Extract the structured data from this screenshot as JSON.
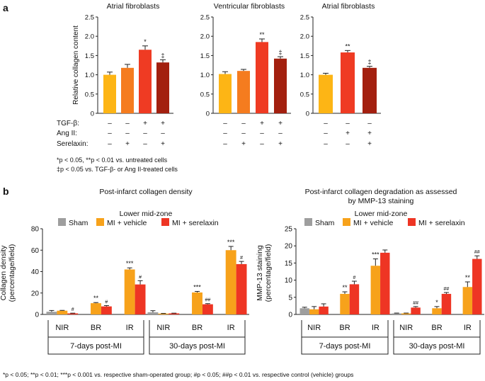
{
  "panel_labels": {
    "a": "a",
    "b": "b"
  },
  "colors": {
    "gray": "#9e9e9e",
    "orange_light": "#fdb515",
    "orange": "#f57c1f",
    "red": "#ef3b23",
    "dark_red": "#a3200f",
    "sham": "#9e9e9e",
    "vehicle": "#f7a21b",
    "serelaxin": "#ee3524"
  },
  "panel_a": {
    "row_labels": {
      "tgf": "TGF-β:",
      "ang": "Ang II:",
      "ser": "Serelaxin:"
    },
    "footnote_1": "*p < 0.05, **p < 0.01 vs. untreated cells",
    "footnote_2": "‡p < 0.05 vs. TGF-β- or Ang II-treated cells"
  },
  "panel_b": {
    "subtitle": "Lower mid-zone",
    "legend": {
      "sham": "Sham",
      "vehicle": "MI + vehicle",
      "serelaxin": "MI + serelaxin"
    },
    "footnote": "*p < 0.05; **p < 0.01; ***p < 0.001 vs. respective sham-operated group; #p < 0.05; ##p < 0.01 vs. respective control (vehicle) groups"
  },
  "chart_data": [
    {
      "type": "bar",
      "title": "Atrial fibroblasts",
      "ylabel": "Relative collagen content",
      "ylim": [
        0,
        2.5
      ],
      "yticks": [
        "0",
        "0.5",
        "1.0",
        "1.5",
        "2.0",
        "2.5"
      ],
      "values": [
        1.0,
        1.18,
        1.65,
        1.32
      ],
      "errors": [
        0.07,
        0.09,
        0.1,
        0.07
      ],
      "bar_colors": [
        "#fdb515",
        "#f57c1f",
        "#ef3b23",
        "#a3200f"
      ],
      "significance": [
        "",
        "",
        "*",
        "‡"
      ],
      "treatments": {
        "tgf": [
          "–",
          "–",
          "+",
          "+"
        ],
        "ang": [
          "–",
          "–",
          "–",
          "–"
        ],
        "ser": [
          "–",
          "+",
          "–",
          "+"
        ]
      }
    },
    {
      "type": "bar",
      "title": "Ventricular fibroblasts",
      "ylim": [
        0,
        2.5
      ],
      "yticks": [
        "0",
        "0.5",
        "1.0",
        "1.5",
        "2.0",
        "2.5"
      ],
      "values": [
        1.02,
        1.1,
        1.85,
        1.42
      ],
      "errors": [
        0.06,
        0.04,
        0.08,
        0.05
      ],
      "bar_colors": [
        "#fdb515",
        "#f57c1f",
        "#ef3b23",
        "#a3200f"
      ],
      "significance": [
        "",
        "",
        "**",
        "‡"
      ],
      "treatments": {
        "tgf": [
          "–",
          "–",
          "+",
          "+"
        ],
        "ang": [
          "–",
          "–",
          "–",
          "–"
        ],
        "ser": [
          "–",
          "+",
          "–",
          "+"
        ]
      }
    },
    {
      "type": "bar",
      "title": "Atrial fibroblasts",
      "ylim": [
        0,
        2.5
      ],
      "yticks": [
        "0",
        "0.5",
        "1.0",
        "1.5",
        "2.0",
        "2.5"
      ],
      "values": [
        1.0,
        1.58,
        1.18
      ],
      "errors": [
        0.04,
        0.05,
        0.04
      ],
      "bar_colors": [
        "#fdb515",
        "#ef3b23",
        "#a3200f"
      ],
      "significance": [
        "",
        "**",
        "‡"
      ],
      "treatments": {
        "tgf": [
          "–",
          "–",
          "–"
        ],
        "ang": [
          "–",
          "+",
          "+"
        ],
        "ser": [
          "–",
          "–",
          "+"
        ]
      }
    },
    {
      "type": "bar",
      "title": "Post-infarct collagen density",
      "ylabel": "Collagen density\n(percentage/field)",
      "ylim": [
        0,
        80
      ],
      "yticks": [
        "0",
        "20",
        "40",
        "60",
        "80"
      ],
      "categories": [
        "NIR",
        "BR",
        "IR",
        "NIR",
        "BR",
        "IR"
      ],
      "group_labels": [
        "7-days post-MI",
        "30-days post-MI"
      ],
      "series": [
        {
          "name": "Sham",
          "values": [
            2.5,
            0,
            0,
            2.0,
            0,
            0
          ],
          "errors": [
            1.2,
            0,
            0,
            1.5,
            0,
            0
          ],
          "sig": [
            "",
            "",
            "",
            "",
            "",
            ""
          ]
        },
        {
          "name": "MI + vehicle",
          "values": [
            3.5,
            10.5,
            42,
            0.8,
            20.5,
            60
          ],
          "errors": [
            0.3,
            0.6,
            1.5,
            0.2,
            1.0,
            3.5
          ],
          "sig": [
            "",
            "**",
            "***",
            "",
            "***",
            "***"
          ]
        },
        {
          "name": "MI + serelaxin",
          "values": [
            1.0,
            7.5,
            28,
            1.0,
            9.5,
            47
          ],
          "errors": [
            0.2,
            0.8,
            3.5,
            0.2,
            0.6,
            2.5
          ],
          "sig": [
            "#",
            "#",
            "#",
            "",
            "##",
            "#"
          ]
        }
      ]
    },
    {
      "type": "bar",
      "title": "Post-infarct collagen degradation as assessed\nby MMP-13 staining",
      "ylabel": "MMP-13 staining\n(percentage/field)",
      "ylim": [
        0,
        25
      ],
      "yticks": [
        "0",
        "5",
        "10",
        "15",
        "20",
        "25"
      ],
      "categories": [
        "NIR",
        "BR",
        "IR",
        "NIR",
        "BR",
        "IR"
      ],
      "group_labels": [
        "7-days post-MI",
        "30-days post-MI"
      ],
      "series": [
        {
          "name": "Sham",
          "values": [
            1.8,
            0,
            0,
            0.3,
            0,
            0
          ],
          "errors": [
            0.3,
            0,
            0,
            0.1,
            0,
            0
          ],
          "sig": [
            "",
            "",
            "",
            "",
            "",
            ""
          ]
        },
        {
          "name": "MI + vehicle",
          "values": [
            1.5,
            6.0,
            14.2,
            0.3,
            1.8,
            8.0
          ],
          "errors": [
            0.8,
            0.6,
            2.0,
            0.1,
            0.5,
            1.5
          ],
          "sig": [
            "",
            "**",
            "***",
            "",
            "*",
            "**"
          ]
        },
        {
          "name": "MI + serelaxin",
          "values": [
            2.3,
            8.8,
            18.0,
            2.0,
            6.0,
            16.2
          ],
          "errors": [
            0.8,
            0.9,
            0.8,
            0.3,
            0.4,
            0.9
          ],
          "sig": [
            "",
            "#",
            "",
            "##",
            "##",
            "##"
          ]
        }
      ]
    }
  ]
}
